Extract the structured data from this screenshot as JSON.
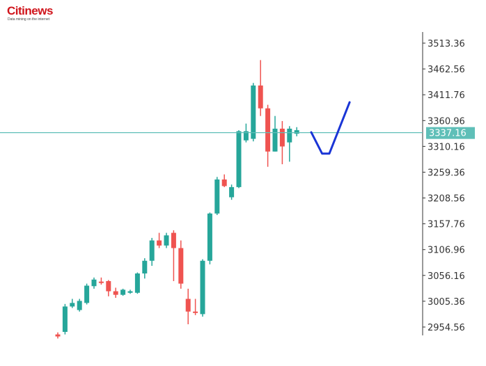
{
  "brand": {
    "name": "Citinews",
    "tagline": "Data mining on the internet"
  },
  "colors": {
    "up": "#26a69a",
    "down": "#ef5350",
    "price_line": "#5fbfb8",
    "forecast": "#1a35d6",
    "axis": "#333333"
  },
  "chart_data": {
    "type": "candlestick",
    "title": "",
    "xlabel": "",
    "ylabel": "",
    "ylim": [
      2934.36,
      3533.36
    ],
    "y_ticks": [
      "3513.36",
      "3462.56",
      "3411.76",
      "3360.96",
      "3310.16",
      "3259.36",
      "3208.56",
      "3157.76",
      "3106.96",
      "3056.16",
      "3005.36",
      "2954.56"
    ],
    "current_price": "3337.16",
    "candles": [
      {
        "o": 2940,
        "h": 2944,
        "l": 2932,
        "c": 2936
      },
      {
        "o": 2945,
        "h": 3000,
        "l": 2940,
        "c": 2995
      },
      {
        "o": 2995,
        "h": 3010,
        "l": 2992,
        "c": 3002
      },
      {
        "o": 2988,
        "h": 3010,
        "l": 2985,
        "c": 3006
      },
      {
        "o": 3002,
        "h": 3040,
        "l": 2999,
        "c": 3036
      },
      {
        "o": 3035,
        "h": 3052,
        "l": 3030,
        "c": 3048
      },
      {
        "o": 3044,
        "h": 3052,
        "l": 3038,
        "c": 3042
      },
      {
        "o": 3045,
        "h": 3047,
        "l": 3015,
        "c": 3025
      },
      {
        "o": 3025,
        "h": 3032,
        "l": 3012,
        "c": 3018
      },
      {
        "o": 3018,
        "h": 3030,
        "l": 3016,
        "c": 3028
      },
      {
        "o": 3022,
        "h": 3028,
        "l": 3020,
        "c": 3025
      },
      {
        "o": 3022,
        "h": 3062,
        "l": 3020,
        "c": 3060
      },
      {
        "o": 3060,
        "h": 3090,
        "l": 3050,
        "c": 3085
      },
      {
        "o": 3085,
        "h": 3130,
        "l": 3075,
        "c": 3125
      },
      {
        "o": 3125,
        "h": 3140,
        "l": 3110,
        "c": 3115
      },
      {
        "o": 3115,
        "h": 3140,
        "l": 3110,
        "c": 3135
      },
      {
        "o": 3140,
        "h": 3145,
        "l": 3045,
        "c": 3110
      },
      {
        "o": 3110,
        "h": 3125,
        "l": 3030,
        "c": 3040
      },
      {
        "o": 3010,
        "h": 3030,
        "l": 2960,
        "c": 2985
      },
      {
        "o": 2985,
        "h": 3010,
        "l": 2978,
        "c": 2983
      },
      {
        "o": 2980,
        "h": 3088,
        "l": 2975,
        "c": 3085
      },
      {
        "o": 3085,
        "h": 3180,
        "l": 3078,
        "c": 3178
      },
      {
        "o": 3178,
        "h": 3250,
        "l": 3175,
        "c": 3245
      },
      {
        "o": 3245,
        "h": 3255,
        "l": 3230,
        "c": 3232
      },
      {
        "o": 3210,
        "h": 3235,
        "l": 3205,
        "c": 3230
      },
      {
        "o": 3230,
        "h": 3342,
        "l": 3228,
        "c": 3340
      },
      {
        "o": 3322,
        "h": 3355,
        "l": 3318,
        "c": 3340
      },
      {
        "o": 3325,
        "h": 3435,
        "l": 3320,
        "c": 3430
      },
      {
        "o": 3430,
        "h": 3480,
        "l": 3370,
        "c": 3385
      },
      {
        "o": 3385,
        "h": 3392,
        "l": 3270,
        "c": 3300
      },
      {
        "o": 3300,
        "h": 3370,
        "l": 3300,
        "c": 3345
      },
      {
        "o": 3345,
        "h": 3360,
        "l": 3275,
        "c": 3310
      },
      {
        "o": 3318,
        "h": 3350,
        "l": 3280,
        "c": 3345
      },
      {
        "o": 3335,
        "h": 3348,
        "l": 3330,
        "c": 3342
      }
    ],
    "forecast_path": [
      {
        "step": 35.0,
        "y": 3338
      },
      {
        "step": 36.5,
        "y": 3296
      },
      {
        "step": 37.5,
        "y": 3296
      },
      {
        "step": 40.3,
        "y": 3397
      }
    ]
  }
}
